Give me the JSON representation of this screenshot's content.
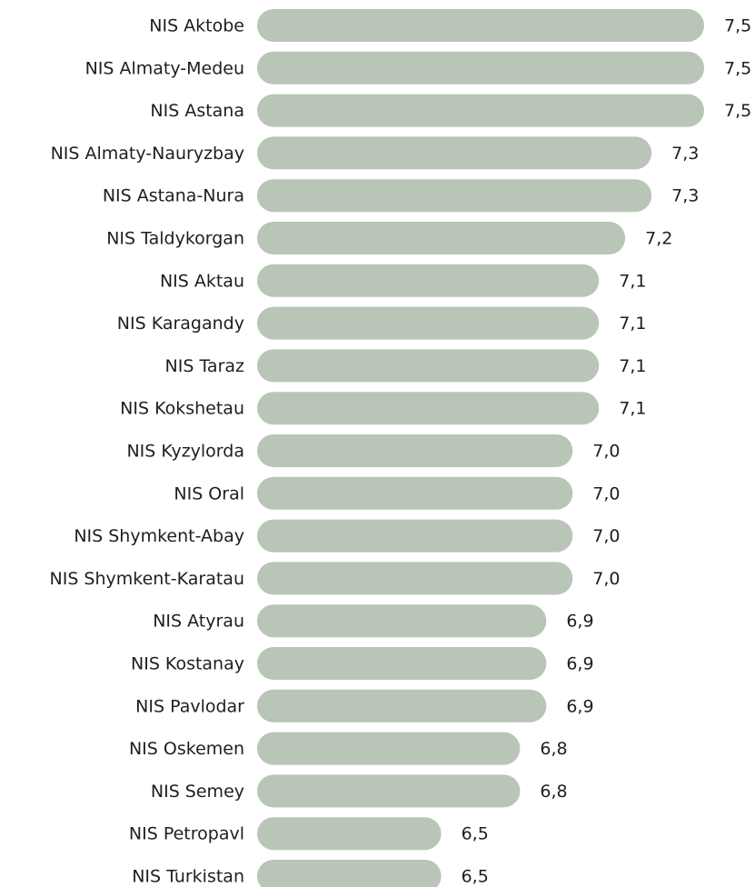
{
  "chart_data": {
    "type": "barh",
    "categories": [
      "NIS Aktobe",
      "NIS Almaty-Medeu",
      "NIS Astana",
      "NIS Almaty-Nauryzbay",
      "NIS Astana-Nura",
      "NIS Taldykorgan",
      "NIS Aktau",
      "NIS Karagandy",
      "NIS Taraz",
      "NIS Kokshetau",
      "NIS Kyzylorda",
      "NIS Oral",
      "NIS Shymkent-Abay",
      "NIS Shymkent-Karatau",
      "NIS Atyrau",
      "NIS Kostanay",
      "NIS Pavlodar",
      "NIS Oskemen",
      "NIS Semey",
      "NIS Petropavl",
      "NIS Turkistan"
    ],
    "values": [
      7.5,
      7.5,
      7.5,
      7.3,
      7.3,
      7.2,
      7.1,
      7.1,
      7.1,
      7.1,
      7.0,
      7.0,
      7.0,
      7.0,
      6.9,
      6.9,
      6.9,
      6.8,
      6.8,
      6.5,
      6.5
    ],
    "value_labels": [
      "7,5",
      "7,5",
      "7,5",
      "7,3",
      "7,3",
      "7,2",
      "7,1",
      "7,1",
      "7,1",
      "7,1",
      "7,0",
      "7,0",
      "7,0",
      "7,0",
      "6,9",
      "6,9",
      "6,9",
      "6,8",
      "6,8",
      "6,5",
      "6,5"
    ],
    "color": "#b9c5b7",
    "xlim": [
      5.8,
      7.5
    ]
  }
}
